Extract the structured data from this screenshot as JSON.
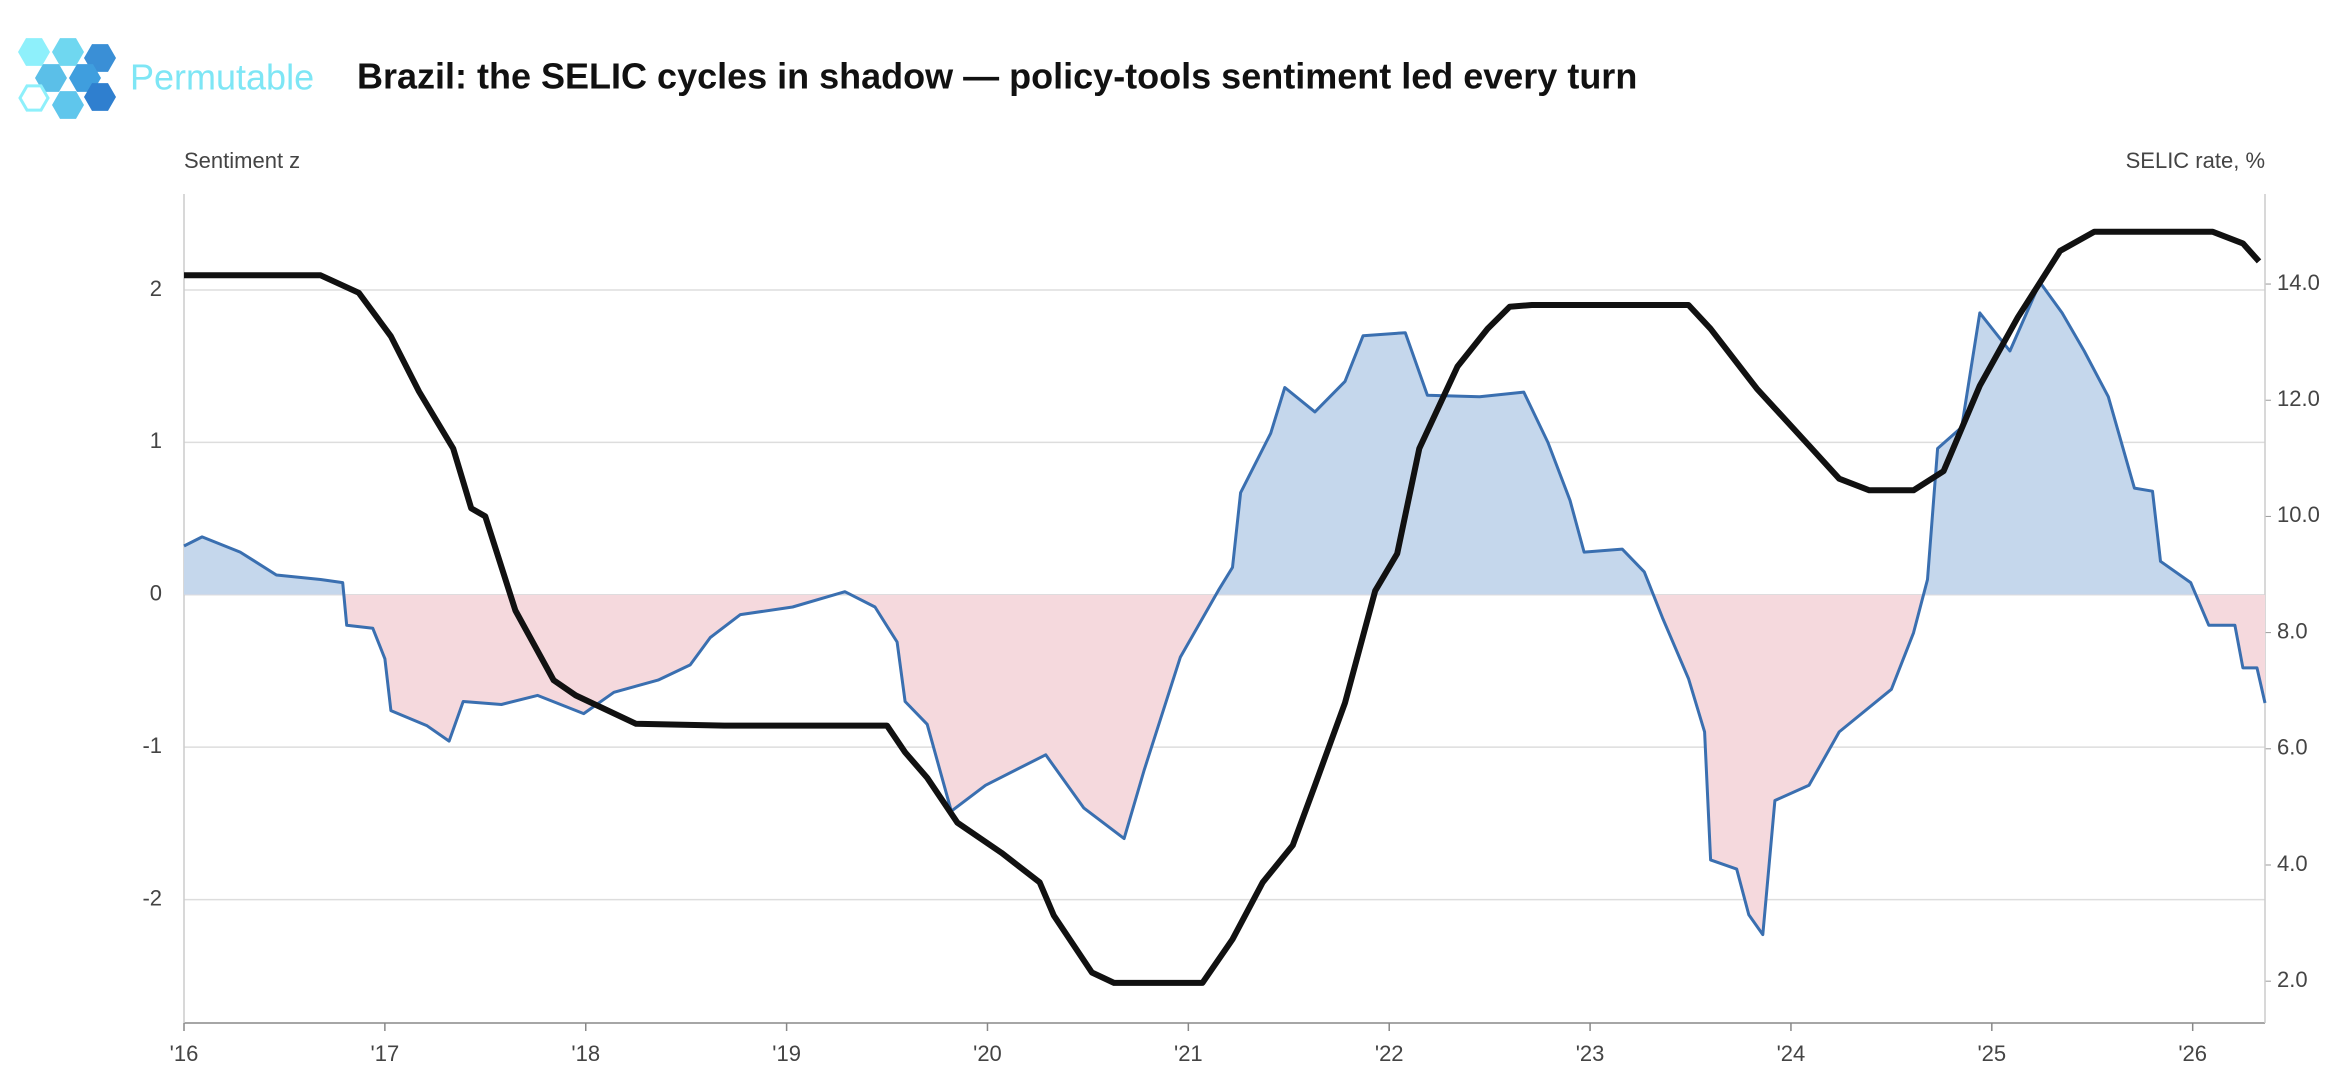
{
  "brand": "Permutable",
  "chart_data": {
    "type": "line",
    "title": "Brazil: the SELIC cycles in shadow — policy-tools sentiment led every turn",
    "y_label": "Sentiment z",
    "y2_label": "SELIC rate, %",
    "xlim": [
      2016,
      2026.36
    ],
    "xticks": [
      {
        "value": 2016,
        "label": "'16"
      },
      {
        "value": 2017,
        "label": "'17"
      },
      {
        "value": 2018,
        "label": "'18"
      },
      {
        "value": 2019,
        "label": "'19"
      },
      {
        "value": 2020,
        "label": "'20"
      },
      {
        "value": 2021,
        "label": "'21"
      },
      {
        "value": 2022,
        "label": "'22"
      },
      {
        "value": 2023,
        "label": "'23"
      },
      {
        "value": 2024,
        "label": "'24"
      },
      {
        "value": 2025,
        "label": "'25"
      },
      {
        "value": 2026,
        "label": "'26"
      }
    ],
    "ylim": [
      -2.81,
      2.63
    ],
    "yticks": [
      -2,
      -1,
      0,
      1,
      2
    ],
    "y2lim": [
      1.28,
      15.55
    ],
    "y2ticks": [
      {
        "value": 2,
        "label": "2.0"
      },
      {
        "value": 4,
        "label": "4.0"
      },
      {
        "value": 6,
        "label": "6.0"
      },
      {
        "value": 8,
        "label": "8.0"
      },
      {
        "value": 10,
        "label": "10.0"
      },
      {
        "value": 12,
        "label": "12.0"
      },
      {
        "value": 14,
        "label": "14.0"
      }
    ],
    "grid": true,
    "fill_positive": "#c5d7ec",
    "fill_negative": "#f5d9dd",
    "series": [
      {
        "color": "#3a6fb0",
        "axis": "y",
        "fill": true,
        "x": [
          2016.0,
          2016.09,
          2016.28,
          2016.46,
          2016.68,
          2016.79,
          2016.81,
          2016.94,
          2017.0,
          2017.03,
          2017.21,
          2017.32,
          2017.39,
          2017.58,
          2017.76,
          2017.99,
          2018.14,
          2018.36,
          2018.52,
          2018.62,
          2018.77,
          2019.03,
          2019.29,
          2019.44,
          2019.55,
          2019.59,
          2019.7,
          2019.82,
          2019.99,
          2020.29,
          2020.48,
          2020.68,
          2020.78,
          2020.96,
          2021.15,
          2021.22,
          2021.26,
          2021.41,
          2021.48,
          2021.63,
          2021.78,
          2021.87,
          2022.08,
          2022.19,
          2022.45,
          2022.67,
          2022.79,
          2022.9,
          2022.97,
          2023.16,
          2023.27,
          2023.36,
          2023.49,
          2023.57,
          2023.6,
          2023.73,
          2023.79,
          2023.86,
          2023.92,
          2024.09,
          2024.24,
          2024.5,
          2024.61,
          2024.68,
          2024.73,
          2024.85,
          2024.94,
          2025.09,
          2025.24,
          2025.35,
          2025.46,
          2025.58,
          2025.71,
          2025.8,
          2025.84,
          2025.99,
          2026.08,
          2026.21,
          2026.25,
          2026.32,
          2026.36
        ],
        "values": [
          0.32,
          0.38,
          0.28,
          0.13,
          0.1,
          0.08,
          -0.2,
          -0.22,
          -0.42,
          -0.76,
          -0.86,
          -0.96,
          -0.7,
          -0.72,
          -0.66,
          -0.78,
          -0.64,
          -0.56,
          -0.46,
          -0.28,
          -0.13,
          -0.08,
          0.02,
          -0.08,
          -0.31,
          -0.7,
          -0.85,
          -1.42,
          -1.25,
          -1.05,
          -1.4,
          -1.6,
          -1.15,
          -0.41,
          0.03,
          0.18,
          0.67,
          1.06,
          1.36,
          1.2,
          1.4,
          1.7,
          1.72,
          1.31,
          1.3,
          1.33,
          1.0,
          0.62,
          0.28,
          0.3,
          0.15,
          -0.15,
          -0.55,
          -0.9,
          -1.74,
          -1.8,
          -2.1,
          -2.23,
          -1.35,
          -1.25,
          -0.9,
          -0.62,
          -0.25,
          0.1,
          0.96,
          1.1,
          1.85,
          1.6,
          2.05,
          1.85,
          1.6,
          1.3,
          0.7,
          0.68,
          0.22,
          0.08,
          -0.2,
          -0.2,
          -0.48,
          -0.48,
          -0.71
        ]
      },
      {
        "color": "#111111",
        "axis": "y2",
        "fill": false,
        "x": [
          2016.0,
          2016.68,
          2016.87,
          2017.03,
          2017.17,
          2017.34,
          2017.43,
          2017.5,
          2017.65,
          2017.84,
          2017.95,
          2018.25,
          2018.69,
          2019.5,
          2019.59,
          2019.7,
          2019.85,
          2020.07,
          2020.26,
          2020.33,
          2020.52,
          2020.63,
          2021.07,
          2021.22,
          2021.37,
          2021.52,
          2021.63,
          2021.78,
          2021.93,
          2022.04,
          2022.15,
          2022.34,
          2022.49,
          2022.6,
          2022.71,
          2023.49,
          2023.6,
          2023.83,
          2024.09,
          2024.24,
          2024.39,
          2024.61,
          2024.76,
          2024.94,
          2025.13,
          2025.34,
          2025.51,
          2026.1,
          2026.25,
          2026.33
        ],
        "values": [
          14.15,
          14.15,
          13.85,
          13.1,
          12.15,
          11.17,
          10.14,
          10.0,
          8.38,
          7.18,
          6.92,
          6.43,
          6.4,
          6.4,
          5.94,
          5.5,
          4.73,
          4.21,
          3.7,
          3.13,
          2.15,
          1.97,
          1.97,
          2.72,
          3.7,
          4.34,
          5.37,
          6.79,
          8.72,
          9.36,
          11.17,
          12.58,
          13.23,
          13.61,
          13.64,
          13.64,
          13.23,
          12.2,
          11.22,
          10.65,
          10.45,
          10.45,
          10.78,
          12.25,
          13.43,
          14.57,
          14.9,
          14.9,
          14.7,
          14.39
        ]
      }
    ]
  }
}
